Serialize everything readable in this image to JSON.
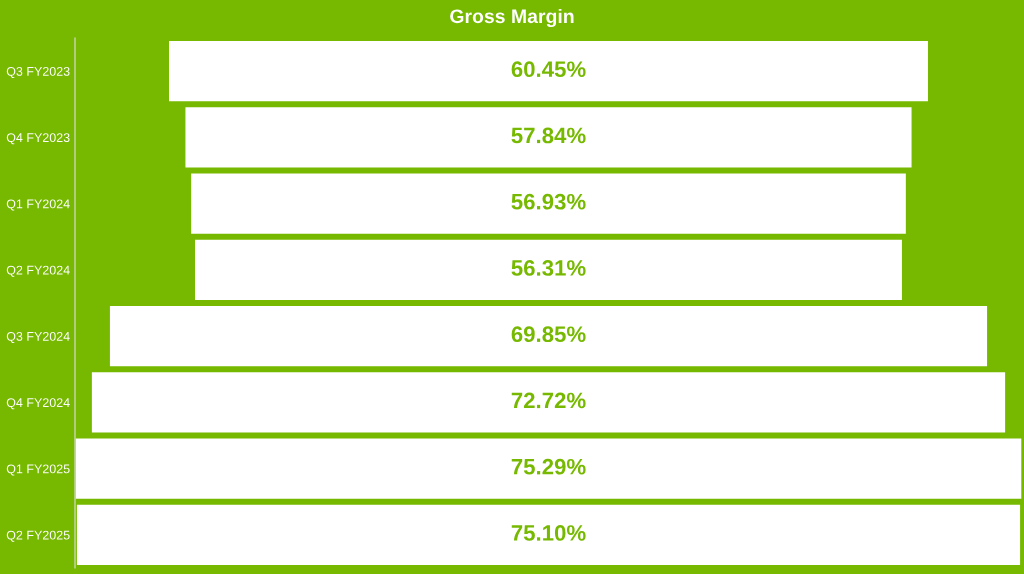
{
  "chart_data": {
    "type": "other",
    "title": "Gross Margin",
    "categories": [
      "Q3 FY2023",
      "Q4 FY2023",
      "Q1 FY2024",
      "Q2 FY2024",
      "Q3 FY2024",
      "Q4 FY2024",
      "Q1 FY2025",
      "Q2 FY2025"
    ],
    "values": [
      60.45,
      57.84,
      56.93,
      56.31,
      69.85,
      72.72,
      75.29,
      75.1
    ],
    "value_labels": [
      "60.45%",
      "57.84%",
      "56.93%",
      "56.31%",
      "69.85%",
      "72.72%",
      "75.29%",
      "75.10%"
    ],
    "color": "#ffffff"
  }
}
